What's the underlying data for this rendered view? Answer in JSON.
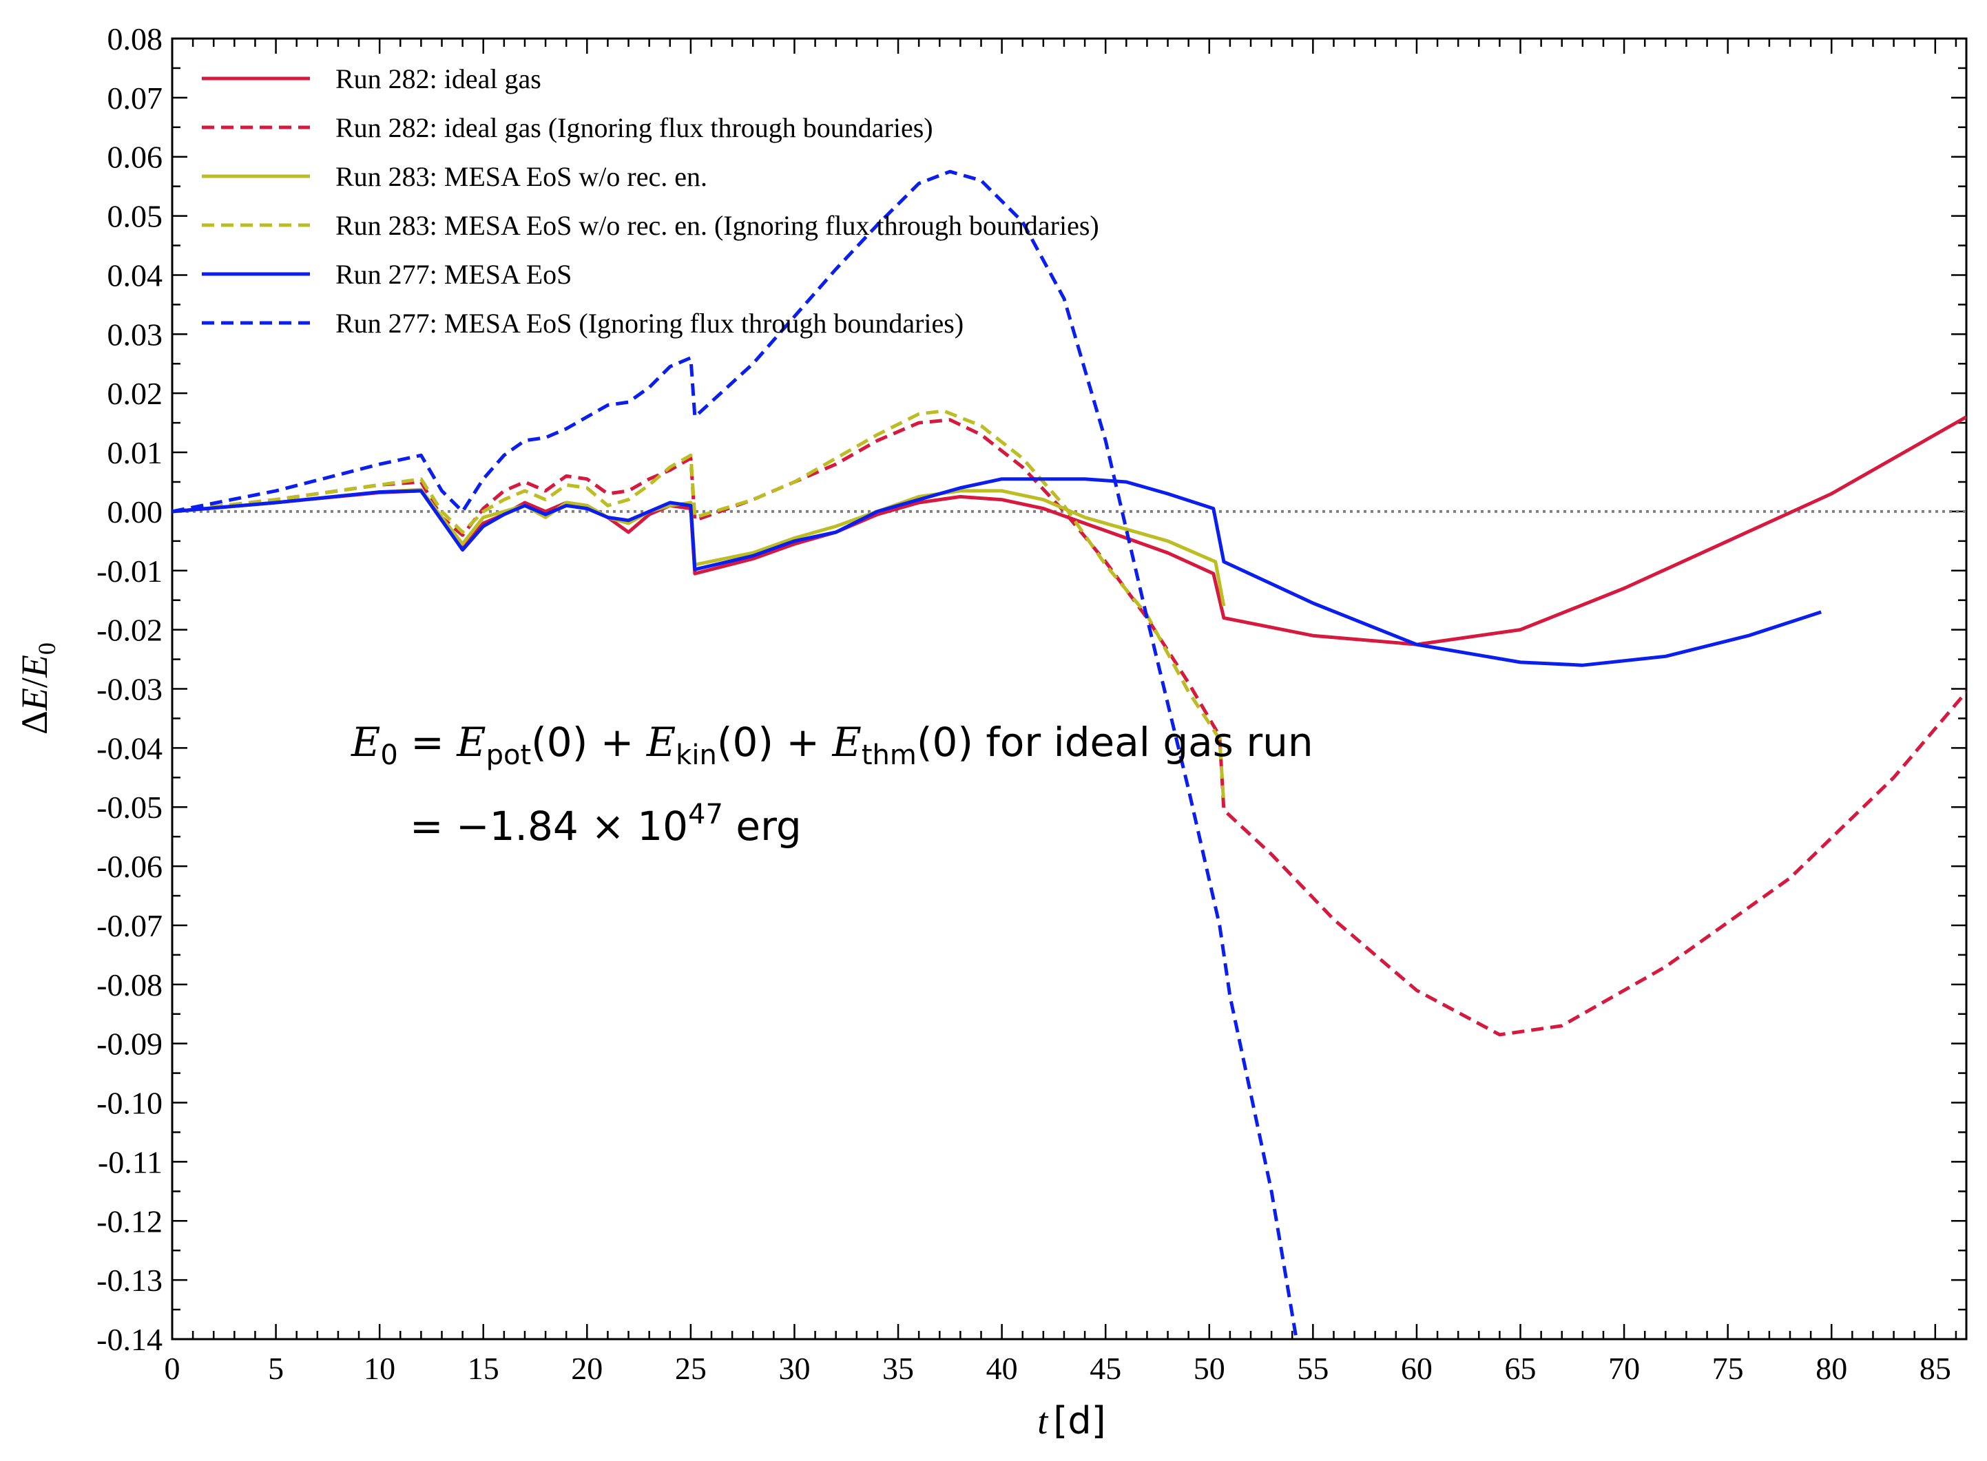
{
  "chart_data": {
    "type": "line",
    "xlabel_var": "t",
    "xlabel_unit": "[d]",
    "ylabel_delta": "Δ",
    "ylabel_var": "E",
    "ylabel_slash": "/",
    "ylabel_sub_var": "E",
    "ylabel_sub": "0",
    "xlim": [
      0,
      86.5
    ],
    "ylim": [
      -0.14,
      0.08
    ],
    "x_ticks": [
      0,
      5,
      10,
      15,
      20,
      25,
      30,
      35,
      40,
      45,
      50,
      55,
      60,
      65,
      70,
      75,
      80,
      85
    ],
    "y_ticks": [
      "0.08",
      "0.07",
      "0.06",
      "0.05",
      "0.04",
      "0.03",
      "0.02",
      "0.01",
      "0.00",
      "-0.01",
      "-0.02",
      "-0.03",
      "-0.04",
      "-0.05",
      "-0.06",
      "-0.07",
      "-0.08",
      "-0.09",
      "-0.10",
      "-0.11",
      "-0.12",
      "-0.13",
      "-0.14"
    ],
    "reference_line": {
      "y": 0.0,
      "style": "dotted",
      "color": "#808080"
    },
    "legend_position": "top-left",
    "annotation": {
      "line1": {
        "e": "E",
        "sub0": "0",
        "eq": " = ",
        "pot": "pot",
        "kin": "kin",
        "thm": "thm",
        "arg": "(0)",
        "plus": " + ",
        "tail": " for ideal gas run"
      },
      "line2": {
        "prefix": "= −1.84 × 10",
        "exp": "47",
        "unit": " erg"
      }
    },
    "series": [
      {
        "name": "Run 282: ideal gas",
        "color": "#d6193e",
        "dash": "solid",
        "points": [
          [
            0,
            0
          ],
          [
            5,
            0.0015
          ],
          [
            10,
            0.0032
          ],
          [
            12,
            0.0035
          ],
          [
            13,
            -0.0015
          ],
          [
            14,
            -0.006
          ],
          [
            15,
            -0.002
          ],
          [
            16,
            -0.0005
          ],
          [
            17,
            0.0015
          ],
          [
            18,
            0
          ],
          [
            19,
            0.0015
          ],
          [
            20,
            0.001
          ],
          [
            21,
            -0.001
          ],
          [
            22,
            -0.0035
          ],
          [
            23,
            -0.0005
          ],
          [
            24,
            0.001
          ],
          [
            25,
            0.0005
          ],
          [
            25.2,
            -0.0105
          ],
          [
            28,
            -0.008
          ],
          [
            30,
            -0.0055
          ],
          [
            32,
            -0.0035
          ],
          [
            34,
            -0.0005
          ],
          [
            36,
            0.0015
          ],
          [
            38,
            0.0025
          ],
          [
            40,
            0.002
          ],
          [
            42,
            0.0005
          ],
          [
            44,
            -0.002
          ],
          [
            46,
            -0.0045
          ],
          [
            48,
            -0.007
          ],
          [
            50.2,
            -0.0105
          ],
          [
            50.7,
            -0.018
          ],
          [
            55,
            -0.021
          ],
          [
            60,
            -0.0225
          ],
          [
            65,
            -0.02
          ],
          [
            70,
            -0.013
          ],
          [
            75,
            -0.005
          ],
          [
            80,
            0.003
          ],
          [
            86.5,
            0.016
          ]
        ]
      },
      {
        "name": "Run 282: ideal gas (Ignoring flux through boundaries)",
        "color": "#d6193e",
        "dash": "dashed",
        "points": [
          [
            0,
            0
          ],
          [
            5,
            0.002
          ],
          [
            10,
            0.0045
          ],
          [
            12,
            0.005
          ],
          [
            13,
            -0.001
          ],
          [
            14,
            -0.004
          ],
          [
            15,
            0.0005
          ],
          [
            16,
            0.0035
          ],
          [
            17,
            0.005
          ],
          [
            18,
            0.0035
          ],
          [
            19,
            0.006
          ],
          [
            20,
            0.0055
          ],
          [
            21,
            0.003
          ],
          [
            22,
            0.0035
          ],
          [
            23,
            0.0055
          ],
          [
            24,
            0.007
          ],
          [
            25,
            0.009
          ],
          [
            25.2,
            -0.0015
          ],
          [
            28,
            0.002
          ],
          [
            30,
            0.005
          ],
          [
            32,
            0.008
          ],
          [
            34,
            0.012
          ],
          [
            36,
            0.015
          ],
          [
            37.5,
            0.0155
          ],
          [
            39,
            0.013
          ],
          [
            41,
            0.0075
          ],
          [
            43,
            0
          ],
          [
            45,
            -0.0085
          ],
          [
            47,
            -0.018
          ],
          [
            49,
            -0.029
          ],
          [
            50.5,
            -0.038
          ],
          [
            50.7,
            -0.0505
          ],
          [
            53,
            -0.058
          ],
          [
            56,
            -0.069
          ],
          [
            60,
            -0.081
          ],
          [
            64,
            -0.0885
          ],
          [
            67,
            -0.087
          ],
          [
            72,
            -0.077
          ],
          [
            78,
            -0.062
          ],
          [
            83,
            -0.045
          ],
          [
            86.5,
            -0.0305
          ]
        ]
      },
      {
        "name": "Run 283: MESA EoS w/o rec. en.",
        "color": "#bcbd22",
        "dash": "solid",
        "points": [
          [
            0,
            0
          ],
          [
            5,
            0.0015
          ],
          [
            10,
            0.0033
          ],
          [
            12,
            0.0037
          ],
          [
            13,
            -0.001
          ],
          [
            14,
            -0.0055
          ],
          [
            15,
            -0.001
          ],
          [
            16,
            0
          ],
          [
            17,
            0.001
          ],
          [
            18,
            -0.001
          ],
          [
            19,
            0.0015
          ],
          [
            20,
            0.001
          ],
          [
            21,
            -0.001
          ],
          [
            22,
            -0.002
          ],
          [
            23,
            0
          ],
          [
            24,
            0.001
          ],
          [
            25,
            0.0015
          ],
          [
            25.2,
            -0.009
          ],
          [
            28,
            -0.007
          ],
          [
            30,
            -0.0045
          ],
          [
            32,
            -0.0025
          ],
          [
            34,
            0
          ],
          [
            36,
            0.0025
          ],
          [
            38,
            0.0035
          ],
          [
            40,
            0.0035
          ],
          [
            42,
            0.002
          ],
          [
            44,
            -0.001
          ],
          [
            46,
            -0.003
          ],
          [
            48,
            -0.005
          ],
          [
            50.3,
            -0.0085
          ],
          [
            50.7,
            -0.016
          ]
        ]
      },
      {
        "name": "Run 283: MESA EoS w/o rec. en. (Ignoring flux through boundaries)",
        "color": "#bcbd22",
        "dash": "dashed",
        "points": [
          [
            0,
            0
          ],
          [
            5,
            0.002
          ],
          [
            10,
            0.0045
          ],
          [
            12,
            0.0055
          ],
          [
            13,
            0
          ],
          [
            14,
            -0.0035
          ],
          [
            15,
            0
          ],
          [
            16,
            0.002
          ],
          [
            17,
            0.0035
          ],
          [
            18,
            0.002
          ],
          [
            19,
            0.0045
          ],
          [
            20,
            0.004
          ],
          [
            21,
            0.001
          ],
          [
            22,
            0.002
          ],
          [
            23,
            0.0045
          ],
          [
            24,
            0.0075
          ],
          [
            25,
            0.0095
          ],
          [
            25.2,
            -0.001
          ],
          [
            28,
            0.002
          ],
          [
            30,
            0.005
          ],
          [
            32,
            0.009
          ],
          [
            34,
            0.013
          ],
          [
            36,
            0.0165
          ],
          [
            37.2,
            0.017
          ],
          [
            39,
            0.0145
          ],
          [
            41,
            0.009
          ],
          [
            43,
            0.001
          ],
          [
            45,
            -0.009
          ],
          [
            47,
            -0.0175
          ],
          [
            49,
            -0.0305
          ],
          [
            50.5,
            -0.0385
          ],
          [
            50.7,
            -0.0495
          ]
        ]
      },
      {
        "name": "Run 277: MESA EoS",
        "color": "#0a1ef0",
        "dash": "solid",
        "points": [
          [
            0,
            0
          ],
          [
            5,
            0.0015
          ],
          [
            10,
            0.0033
          ],
          [
            12,
            0.0035
          ],
          [
            13,
            -0.0015
          ],
          [
            14,
            -0.0065
          ],
          [
            15,
            -0.0025
          ],
          [
            16,
            -0.0005
          ],
          [
            17,
            0.001
          ],
          [
            18,
            -0.0005
          ],
          [
            19,
            0.001
          ],
          [
            20,
            0.0005
          ],
          [
            21,
            -0.001
          ],
          [
            22,
            -0.0015
          ],
          [
            23,
            0
          ],
          [
            24,
            0.0015
          ],
          [
            25,
            0.001
          ],
          [
            25.2,
            -0.0098
          ],
          [
            28,
            -0.0075
          ],
          [
            30,
            -0.005
          ],
          [
            32,
            -0.0035
          ],
          [
            34,
            0
          ],
          [
            36,
            0.002
          ],
          [
            38,
            0.004
          ],
          [
            40,
            0.0055
          ],
          [
            42,
            0.0055
          ],
          [
            44,
            0.0055
          ],
          [
            46,
            0.005
          ],
          [
            48,
            0.003
          ],
          [
            50.2,
            0.0005
          ],
          [
            50.7,
            -0.0085
          ],
          [
            55,
            -0.0155
          ],
          [
            60,
            -0.0225
          ],
          [
            65,
            -0.0255
          ],
          [
            68,
            -0.026
          ],
          [
            72,
            -0.0245
          ],
          [
            76,
            -0.021
          ],
          [
            79.5,
            -0.017
          ]
        ]
      },
      {
        "name": "Run 277: MESA EoS (Ignoring flux through boundaries)",
        "color": "#0a1ef0",
        "dash": "dashed",
        "points": [
          [
            0,
            0
          ],
          [
            5,
            0.0035
          ],
          [
            10,
            0.008
          ],
          [
            12,
            0.0095
          ],
          [
            13,
            0.0035
          ],
          [
            14,
            0
          ],
          [
            15,
            0.0055
          ],
          [
            16,
            0.0095
          ],
          [
            17,
            0.012
          ],
          [
            18,
            0.0125
          ],
          [
            19,
            0.014
          ],
          [
            20,
            0.016
          ],
          [
            21,
            0.018
          ],
          [
            22,
            0.0185
          ],
          [
            23,
            0.021
          ],
          [
            24,
            0.0245
          ],
          [
            25,
            0.026
          ],
          [
            25.2,
            0.016
          ],
          [
            28,
            0.025
          ],
          [
            30,
            0.033
          ],
          [
            32,
            0.041
          ],
          [
            34,
            0.0485
          ],
          [
            36,
            0.0555
          ],
          [
            37.5,
            0.0575
          ],
          [
            39,
            0.056
          ],
          [
            41,
            0.049
          ],
          [
            43,
            0.036
          ],
          [
            45,
            0.012
          ],
          [
            47,
            -0.018
          ],
          [
            49,
            -0.047
          ],
          [
            50.5,
            -0.07
          ],
          [
            51,
            -0.082
          ],
          [
            53,
            -0.115
          ],
          [
            54.2,
            -0.14
          ]
        ]
      }
    ]
  }
}
